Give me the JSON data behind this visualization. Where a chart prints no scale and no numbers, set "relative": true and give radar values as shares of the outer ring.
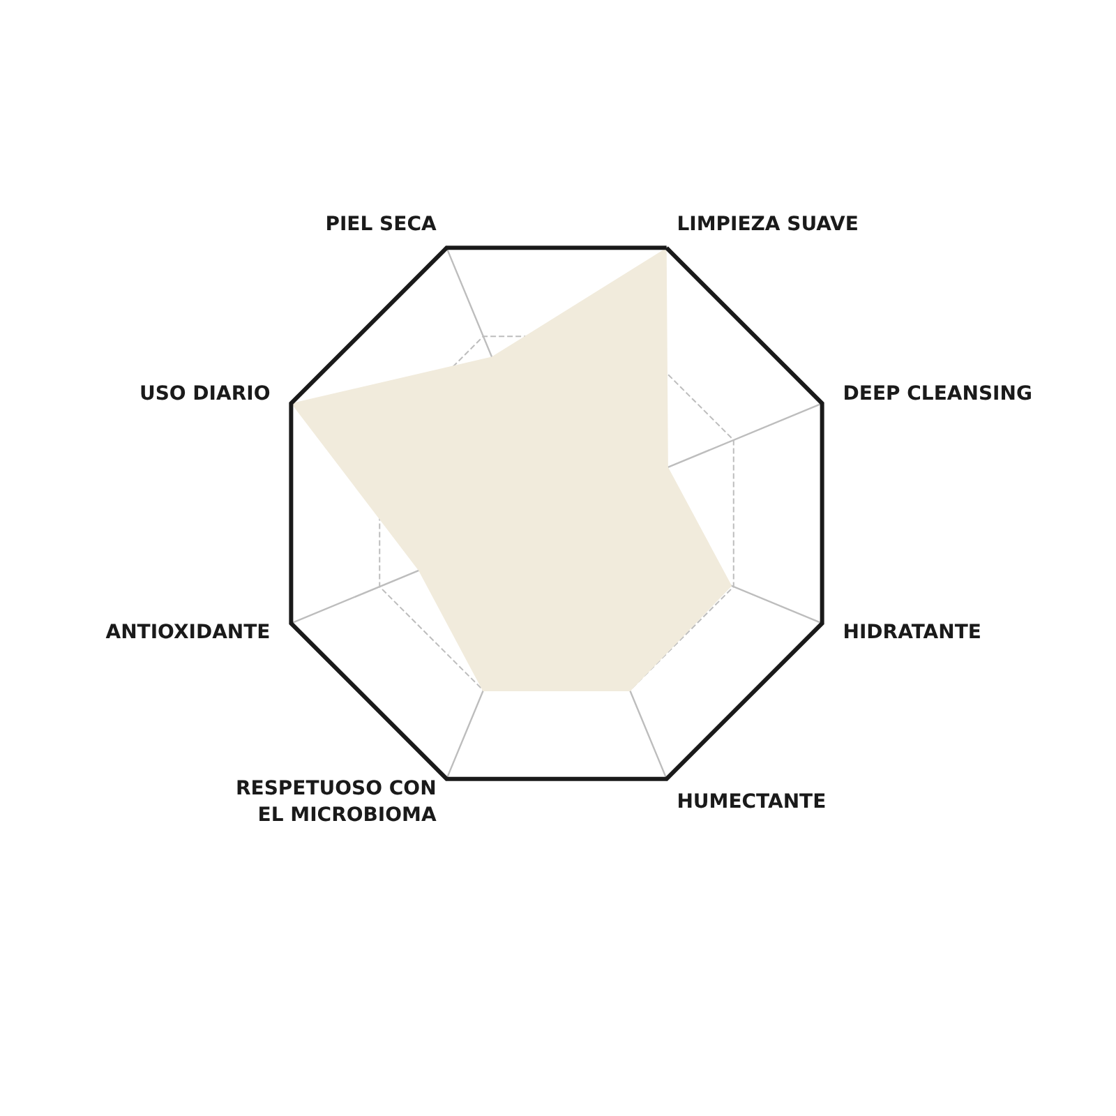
{
  "chart_data": {
    "type": "radar",
    "relative": true,
    "categories": [
      "LIMPIEZA SUAVE",
      "DEEP CLEANSING",
      "HIDRATANTE",
      "HUMECTANTE",
      "RESPETUOSO CON EL MICROBIOMA",
      "ANTIOXIDANTE",
      "USO DIARIO",
      "PIEL SECA"
    ],
    "series": [
      {
        "color": "#f1ebdc",
        "values": [
          1,
          0.42,
          0.66,
          0.67,
          0.67,
          0.52,
          1,
          0.59
        ]
      }
    ],
    "grid": true
  }
}
